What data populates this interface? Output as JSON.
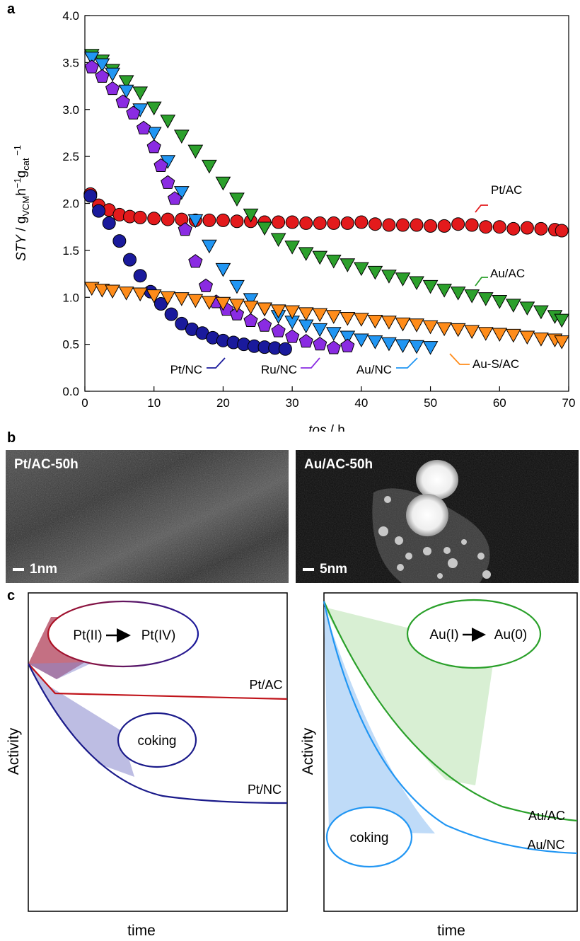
{
  "panels": {
    "a": "a",
    "b": "b",
    "c": "c"
  },
  "chart_data": [
    {
      "type": "scatter",
      "title": "",
      "xlabel": "tos / h",
      "ylabel": "STY / g_VCM h^-1 g_cat^-1",
      "xlim": [
        0,
        70
      ],
      "ylim": [
        0.0,
        4.0
      ],
      "xticks": [
        "0",
        "10",
        "20",
        "30",
        "40",
        "50",
        "60",
        "70"
      ],
      "yticks": [
        "0.0",
        "0.5",
        "1.0",
        "1.5",
        "2.0",
        "2.5",
        "3.0",
        "3.5",
        "4.0"
      ],
      "series": [
        {
          "name": "Pt/AC",
          "marker": "circle",
          "color": "#e31a1c",
          "x": [
            0.8,
            2,
            3.5,
            5,
            6.5,
            8,
            10,
            12,
            14,
            16,
            18,
            20,
            22,
            24,
            26,
            28,
            30,
            32,
            34,
            36,
            38,
            40,
            42,
            44,
            46,
            48,
            50,
            52,
            54,
            56,
            58,
            60,
            62,
            64,
            66,
            68,
            69
          ],
          "y": [
            2.1,
            1.98,
            1.93,
            1.88,
            1.86,
            1.85,
            1.84,
            1.83,
            1.83,
            1.82,
            1.82,
            1.82,
            1.81,
            1.81,
            1.8,
            1.8,
            1.8,
            1.79,
            1.79,
            1.79,
            1.79,
            1.8,
            1.78,
            1.77,
            1.77,
            1.77,
            1.76,
            1.76,
            1.78,
            1.77,
            1.75,
            1.75,
            1.73,
            1.74,
            1.73,
            1.72,
            1.71
          ]
        },
        {
          "name": "Au/AC",
          "marker": "triangle-down",
          "color": "#2ca02c",
          "x": [
            1,
            2.5,
            4,
            6,
            8,
            10,
            12,
            14,
            16,
            18,
            20,
            22,
            24,
            26,
            28,
            30,
            32,
            34,
            36,
            38,
            40,
            42,
            44,
            46,
            48,
            50,
            52,
            54,
            56,
            58,
            60,
            62,
            64,
            66,
            68,
            69
          ],
          "y": [
            3.58,
            3.52,
            3.42,
            3.3,
            3.18,
            3.02,
            2.88,
            2.72,
            2.56,
            2.4,
            2.22,
            2.05,
            1.88,
            1.74,
            1.62,
            1.54,
            1.47,
            1.43,
            1.39,
            1.35,
            1.31,
            1.27,
            1.23,
            1.2,
            1.16,
            1.12,
            1.08,
            1.05,
            1.02,
            0.99,
            0.96,
            0.92,
            0.89,
            0.85,
            0.8,
            0.76
          ]
        },
        {
          "name": "Au/NC",
          "marker": "triangle-down",
          "color": "#2196f3",
          "x": [
            1,
            2.5,
            4,
            6,
            8,
            10,
            12,
            14,
            16,
            18,
            20,
            22,
            24,
            26,
            28,
            30,
            32,
            34,
            36,
            38,
            40,
            42,
            44,
            46,
            48,
            50
          ],
          "y": [
            3.55,
            3.48,
            3.38,
            3.2,
            3.0,
            2.75,
            2.45,
            2.12,
            1.82,
            1.55,
            1.3,
            1.12,
            0.98,
            0.88,
            0.8,
            0.74,
            0.7,
            0.66,
            0.62,
            0.58,
            0.55,
            0.53,
            0.51,
            0.49,
            0.48,
            0.47
          ]
        },
        {
          "name": "Ru/NC",
          "marker": "pentagon",
          "color": "#8a2be2",
          "x": [
            1,
            2.5,
            4,
            5.5,
            7,
            8.5,
            10,
            11,
            12,
            13,
            14.5,
            16,
            17.5,
            19,
            20.5,
            22,
            24,
            26,
            28,
            30,
            32,
            34,
            36,
            38
          ],
          "y": [
            3.45,
            3.35,
            3.22,
            3.08,
            2.96,
            2.8,
            2.6,
            2.4,
            2.22,
            2.05,
            1.72,
            1.38,
            1.12,
            0.95,
            0.87,
            0.82,
            0.75,
            0.7,
            0.64,
            0.58,
            0.53,
            0.5,
            0.46,
            0.48
          ]
        },
        {
          "name": "Pt/NC",
          "marker": "circle",
          "color": "#1a1a9c",
          "x": [
            0.8,
            2,
            3.5,
            5,
            6.5,
            8,
            9.5,
            11,
            12.5,
            14,
            15.5,
            17,
            18.5,
            20,
            21.5,
            23,
            24.5,
            26,
            27.5,
            29
          ],
          "y": [
            2.08,
            1.92,
            1.79,
            1.6,
            1.4,
            1.23,
            1.06,
            0.93,
            0.82,
            0.72,
            0.66,
            0.62,
            0.57,
            0.54,
            0.52,
            0.5,
            0.48,
            0.47,
            0.46,
            0.45
          ]
        },
        {
          "name": "Au-S/AC",
          "marker": "triangle-down",
          "color": "#ff8c1a",
          "x": [
            1,
            2.5,
            4,
            6,
            8,
            10,
            12,
            14,
            16,
            18,
            20,
            22,
            24,
            26,
            28,
            30,
            32,
            34,
            36,
            38,
            40,
            42,
            44,
            46,
            48,
            50,
            52,
            54,
            56,
            58,
            60,
            62,
            64,
            66,
            68,
            69
          ],
          "y": [
            1.1,
            1.08,
            1.07,
            1.05,
            1.04,
            1.02,
            1.0,
            0.99,
            0.97,
            0.95,
            0.94,
            0.92,
            0.9,
            0.88,
            0.86,
            0.85,
            0.83,
            0.82,
            0.8,
            0.78,
            0.77,
            0.75,
            0.74,
            0.72,
            0.71,
            0.69,
            0.67,
            0.66,
            0.64,
            0.62,
            0.61,
            0.6,
            0.58,
            0.56,
            0.55,
            0.53
          ]
        }
      ],
      "labels": [
        "Pt/AC",
        "Au/AC",
        "Pt/NC",
        "Ru/NC",
        "Au/NC",
        "Au-S/AC"
      ]
    },
    {
      "type": "line",
      "title": "",
      "xlabel": "time",
      "ylabel": "Activity",
      "series": [
        {
          "name": "Pt/AC",
          "color": "#c0141b"
        },
        {
          "name": "Pt/NC",
          "color": "#1a1a8a"
        }
      ],
      "annotations": [
        "Pt(II)",
        "Pt(IV)",
        "coking"
      ]
    },
    {
      "type": "line",
      "title": "",
      "xlabel": "time",
      "ylabel": "Activity",
      "series": [
        {
          "name": "Au/AC",
          "color": "#2aa02a"
        },
        {
          "name": "Au/NC",
          "color": "#2196f3"
        }
      ],
      "annotations": [
        "Au(I)",
        "Au(0)",
        "coking"
      ]
    }
  ],
  "micrographs": [
    {
      "label": "Pt/AC-50h",
      "scale": "1nm"
    },
    {
      "label": "Au/AC-50h",
      "scale": "5nm"
    }
  ]
}
